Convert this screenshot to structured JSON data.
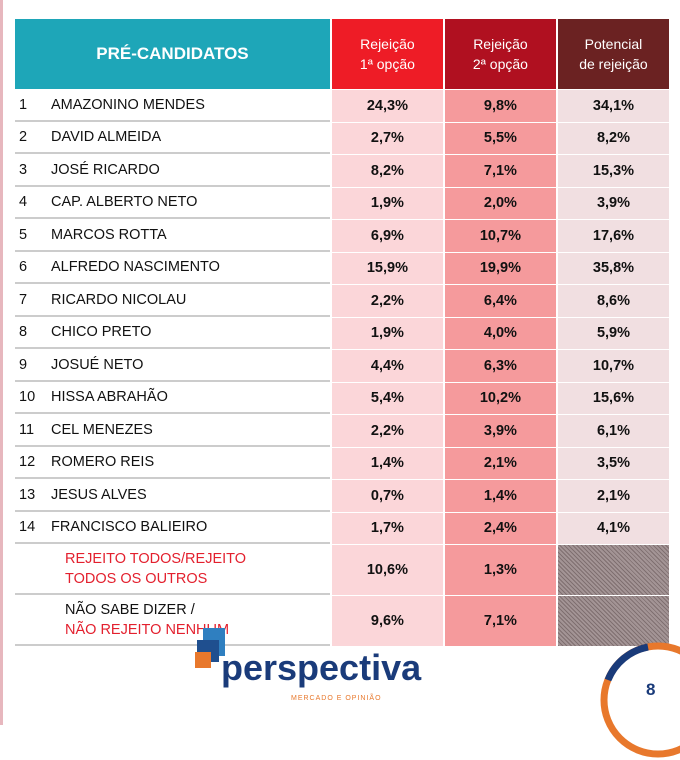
{
  "header": {
    "candidates": "PRÉ-CANDIDATOS",
    "col1": [
      "Rejeição",
      "1ª opção"
    ],
    "col2": [
      "Rejeição",
      "2ª opção"
    ],
    "col3": [
      "Potencial",
      "de rejeição"
    ]
  },
  "rows": [
    {
      "n": "1",
      "name": "AMAZONINO MENDES",
      "r1": "24,3%",
      "r2": "9,8%",
      "p": "34,1%"
    },
    {
      "n": "2",
      "name": "DAVID ALMEIDA",
      "r1": "2,7%",
      "r2": "5,5%",
      "p": "8,2%"
    },
    {
      "n": "3",
      "name": "JOSÉ RICARDO",
      "r1": "8,2%",
      "r2": "7,1%",
      "p": "15,3%"
    },
    {
      "n": "4",
      "name": "CAP. ALBERTO NETO",
      "r1": "1,9%",
      "r2": "2,0%",
      "p": "3,9%"
    },
    {
      "n": "5",
      "name": "MARCOS ROTTA",
      "r1": "6,9%",
      "r2": "10,7%",
      "p": "17,6%"
    },
    {
      "n": "6",
      "name": "ALFREDO NASCIMENTO",
      "r1": "15,9%",
      "r2": "19,9%",
      "p": "35,8%"
    },
    {
      "n": "7",
      "name": "RICARDO NICOLAU",
      "r1": "2,2%",
      "r2": "6,4%",
      "p": "8,6%"
    },
    {
      "n": "8",
      "name": "CHICO PRETO",
      "r1": "1,9%",
      "r2": "4,0%",
      "p": "5,9%"
    },
    {
      "n": "9",
      "name": "JOSUÉ NETO",
      "r1": "4,4%",
      "r2": "6,3%",
      "p": "10,7%"
    },
    {
      "n": "10",
      "name": "HISSA ABRAHÃO",
      "r1": "5,4%",
      "r2": "10,2%",
      "p": "15,6%"
    },
    {
      "n": "11",
      "name": "CEL MENEZES",
      "r1": "2,2%",
      "r2": "3,9%",
      "p": "6,1%"
    },
    {
      "n": "12",
      "name": "ROMERO REIS",
      "r1": "1,4%",
      "r2": "2,1%",
      "p": "3,5%"
    },
    {
      "n": "13",
      "name": "JESUS ALVES",
      "r1": "0,7%",
      "r2": "1,4%",
      "p": "2,1%"
    },
    {
      "n": "14",
      "name": "FRANCISCO BALIEIRO",
      "r1": "1,7%",
      "r2": "2,4%",
      "p": "4,1%"
    }
  ],
  "special": [
    {
      "line1": "REJEITO TODOS/REJEITO",
      "line2": "TODOS OS OUTROS",
      "r1": "10,6%",
      "r2": "1,3%"
    },
    {
      "line1": "NÃO SABE DIZER /",
      "line2": "NÃO REJEITO NENHUM",
      "r1": "9,6%",
      "r2": "7,1%"
    }
  ],
  "logo": {
    "text": "perspectiva",
    "tagline": "MERCADO E OPINIÃO"
  },
  "page_number": "8",
  "colors": {
    "teal": "#1ea6b8",
    "red": "#ee1c26",
    "darkred": "#b01020",
    "brown": "#6b2222",
    "accent_text": "#e3202e",
    "navy": "#1a3b7a",
    "orange": "#e8782c"
  }
}
